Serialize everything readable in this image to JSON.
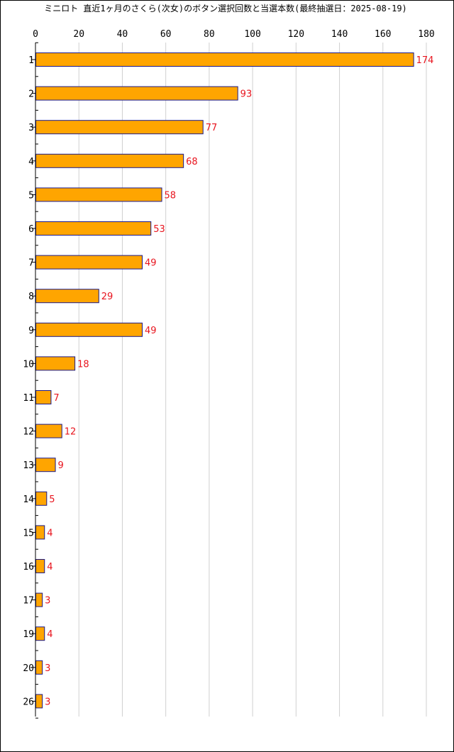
{
  "chart_data": {
    "type": "bar",
    "orientation": "horizontal",
    "title": "ミニロト 直近1ヶ月のさくら(次女)のボタン選択回数と当選本数(最終抽選日：2025-08-19)",
    "categories": [
      "1",
      "2",
      "3",
      "4",
      "5",
      "6",
      "7",
      "8",
      "9",
      "10",
      "11",
      "12",
      "13",
      "14",
      "15",
      "16",
      "17",
      "19",
      "20",
      "26"
    ],
    "values": [
      174,
      93,
      77,
      68,
      58,
      53,
      49,
      29,
      49,
      18,
      7,
      12,
      9,
      5,
      4,
      4,
      3,
      4,
      3,
      3
    ],
    "xlim": [
      0,
      180
    ],
    "xticks": [
      0,
      20,
      40,
      60,
      80,
      100,
      120,
      140,
      160,
      180
    ],
    "xlabel": "",
    "ylabel": "",
    "grid": true,
    "bar_color": "#FFA500",
    "bar_edge_color": "#1a1a8c",
    "label_color": "#e8141e",
    "grid_color": "#d0d0d0"
  }
}
